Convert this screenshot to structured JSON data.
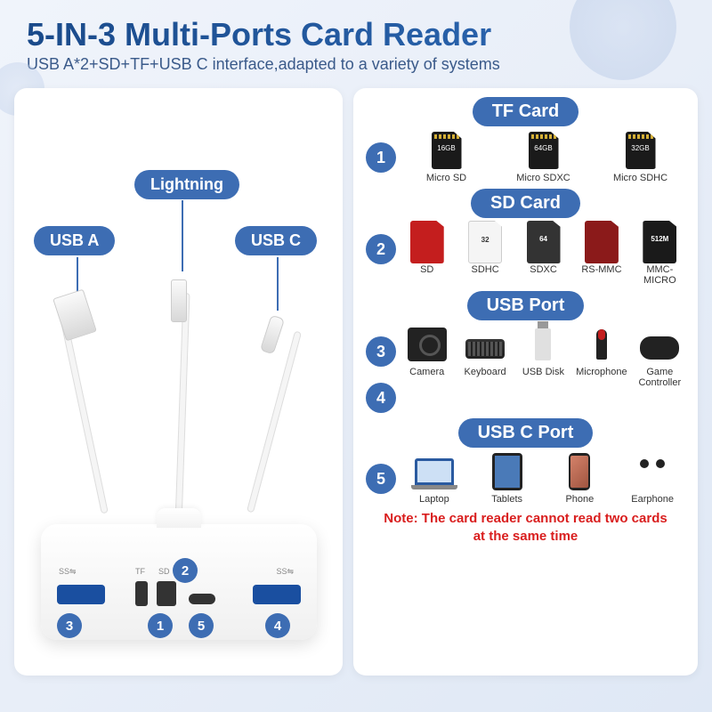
{
  "colors": {
    "accent": "#3d6db3",
    "title_gradient_from": "#1a4a8a",
    "title_gradient_to": "#2e6bb8",
    "note": "#d91e1e",
    "usb_port_blue": "#1a4fa0",
    "panel_bg": "#ffffff",
    "page_bg_from": "#f0f4fb",
    "page_bg_to": "#dfe8f5"
  },
  "typography": {
    "title_fontsize": 36,
    "subtitle_fontsize": 18,
    "section_title_fontsize": 20,
    "item_label_fontsize": 11,
    "note_fontsize": 15
  },
  "header": {
    "title": "5-IN-3 Multi-Ports Card Reader",
    "subtitle": "USB A*2+SD+TF+USB C interface,adapted to a variety of systems"
  },
  "left": {
    "connectors": {
      "usba": "USB A",
      "lightning": "Lightning",
      "usbc": "USB C"
    },
    "port_numbers": [
      "1",
      "2",
      "3",
      "4",
      "5"
    ]
  },
  "right": {
    "sections": [
      {
        "title": "TF Card",
        "numbers": [
          "1"
        ],
        "items": [
          {
            "label": "Micro SD",
            "icon": "tfcard",
            "cap": "16GB"
          },
          {
            "label": "Micro SDXC",
            "icon": "tfcard",
            "cap": "64GB"
          },
          {
            "label": "Micro SDHC",
            "icon": "tfcard",
            "cap": "32GB"
          }
        ]
      },
      {
        "title": "SD Card",
        "numbers": [
          "2"
        ],
        "items": [
          {
            "label": "SD",
            "icon": "sdcard-red",
            "cap": ""
          },
          {
            "label": "SDHC",
            "icon": "sdcard-white",
            "cap": "32"
          },
          {
            "label": "SDXC",
            "icon": "sdcard-orange",
            "cap": "64"
          },
          {
            "label": "RS-MMC",
            "icon": "sdcard-darkred",
            "cap": ""
          },
          {
            "label": "MMC-MICRO",
            "icon": "sdcard-black",
            "cap": "512M"
          }
        ]
      },
      {
        "title": "USB Port",
        "numbers": [
          "3",
          "4"
        ],
        "items": [
          {
            "label": "Camera",
            "icon": "camera"
          },
          {
            "label": "Keyboard",
            "icon": "keyboard"
          },
          {
            "label": "USB Disk",
            "icon": "usbdisk"
          },
          {
            "label": "Microphone",
            "icon": "mic"
          },
          {
            "label": "Game Controller",
            "icon": "gamepad"
          }
        ]
      },
      {
        "title": "USB C Port",
        "numbers": [
          "5"
        ],
        "items": [
          {
            "label": "Laptop",
            "icon": "laptop"
          },
          {
            "label": "Tablets",
            "icon": "tablet"
          },
          {
            "label": "Phone",
            "icon": "phone"
          },
          {
            "label": "Earphone",
            "icon": "earphone"
          }
        ]
      }
    ],
    "note_line1": "Note:  The card reader cannot read two cards",
    "note_line2": "at the same time"
  }
}
